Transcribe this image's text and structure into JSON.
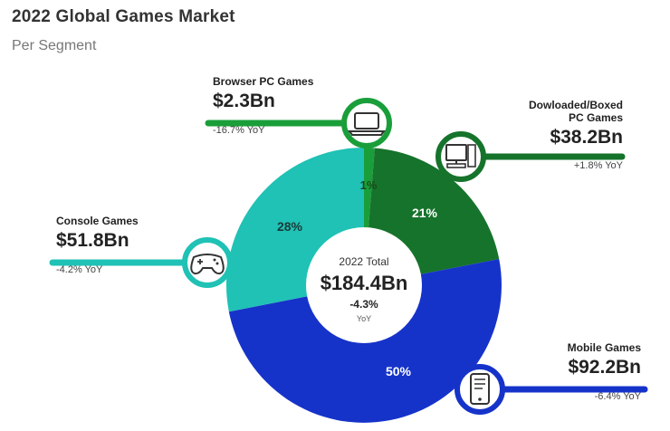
{
  "title": "2022 Global Games Market",
  "subtitle": "Per Segment",
  "center": {
    "caption": "2022 Total",
    "value": "$184.4Bn",
    "change": "-4.3%",
    "change_unit": "YoY"
  },
  "segments": [
    {
      "key": "browser",
      "name": "Browser PC Games",
      "value": "$2.3Bn",
      "yoy": "-16.7% YoY",
      "pct_label": "1%",
      "icon": "laptop-icon",
      "color": "#1a9e3a"
    },
    {
      "key": "boxed",
      "name": "Dowloaded/Boxed\nPC Games",
      "value": "$38.2Bn",
      "yoy": "+1.8% YoY",
      "pct_label": "21%",
      "icon": "desktop-computer-icon",
      "color": "#16732b"
    },
    {
      "key": "mobile",
      "name": "Mobile Games",
      "value": "$92.2Bn",
      "yoy": "-6.4% YoY",
      "pct_label": "50%",
      "icon": "smartphone-icon",
      "color": "#1633c9"
    },
    {
      "key": "console",
      "name": "Console Games",
      "value": "$51.8Bn",
      "yoy": "-4.2% YoY",
      "pct_label": "28%",
      "icon": "gamepad-icon",
      "color": "#1fc2b5"
    }
  ],
  "chart_data": {
    "type": "pie",
    "title": "2022 Global Games Market",
    "subtitle": "Per Segment",
    "categories": [
      "Browser PC Games",
      "Dowloaded/Boxed PC Games",
      "Mobile Games",
      "Console Games"
    ],
    "values": [
      2.3,
      38.2,
      92.2,
      51.8
    ],
    "unit": "$Bn",
    "percent_labels": [
      "1%",
      "21%",
      "50%",
      "28%"
    ],
    "yoy": [
      "-16.7%",
      "+1.8%",
      "-6.4%",
      "-4.2%"
    ],
    "total": 184.4,
    "total_yoy": "-4.3%"
  }
}
